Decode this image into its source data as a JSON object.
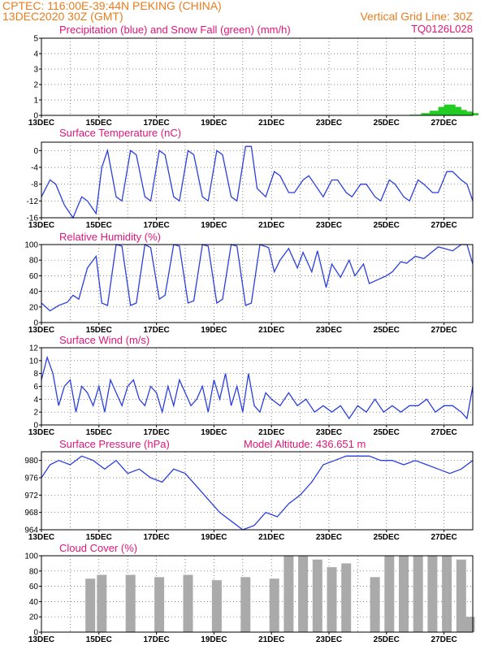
{
  "header": {
    "line1": "CPTEC:   116:00E-39:44N   PEKING (CHINA)",
    "line2": "13DEC2020 30Z (GMT)",
    "grid_note": "Vertical Grid Line: 30Z",
    "code": "TQ0126L028"
  },
  "colors": {
    "header": "#e87d1e",
    "title": "#e0157a",
    "line": "#2b3fe0",
    "snow": "#22cc22",
    "cloud": "#aaaaaa"
  },
  "chart_data": [
    {
      "type": "bar",
      "title": "Precipitation (blue) and Snow Fall (green) (mm/h)",
      "x_ticks": [
        "13DEC",
        "15DEC",
        "17DEC",
        "19DEC",
        "21DEC",
        "23DEC",
        "25DEC",
        "27DEC"
      ],
      "xlim": [
        13,
        28
      ],
      "ylim": [
        0,
        5
      ],
      "y_ticks": [
        0,
        1,
        2,
        3,
        4,
        5
      ],
      "series": [
        {
          "x": [
            25.0,
            25.5,
            26.0,
            26.4,
            26.7,
            27.0,
            27.2,
            27.4,
            27.6,
            27.8,
            28.0
          ],
          "values": [
            0.01,
            0.02,
            0.05,
            0.15,
            0.3,
            0.55,
            0.7,
            0.55,
            0.35,
            0.25,
            0.15
          ]
        }
      ]
    },
    {
      "type": "line",
      "title": "Surface Temperature (nC)",
      "x_ticks": [
        "13DEC",
        "15DEC",
        "17DEC",
        "19DEC",
        "21DEC",
        "23DEC",
        "25DEC",
        "27DEC"
      ],
      "xlim": [
        13,
        28
      ],
      "ylim": [
        -16,
        2
      ],
      "y_ticks": [
        -16,
        -12,
        -8,
        -4,
        0
      ],
      "series": [
        {
          "x": [
            13.0,
            13.3,
            13.5,
            13.8,
            14.1,
            14.4,
            14.6,
            14.9,
            15.1,
            15.3,
            15.6,
            15.8,
            16.1,
            16.3,
            16.6,
            16.8,
            17.1,
            17.3,
            17.6,
            17.8,
            18.1,
            18.3,
            18.6,
            18.8,
            19.1,
            19.3,
            19.6,
            19.8,
            20.1,
            20.3,
            20.5,
            20.8,
            21.1,
            21.3,
            21.6,
            21.8,
            22.1,
            22.3,
            22.6,
            22.8,
            23.1,
            23.3,
            23.6,
            23.8,
            24.1,
            24.3,
            24.6,
            24.8,
            25.1,
            25.3,
            25.6,
            25.8,
            26.1,
            26.3,
            26.6,
            26.8,
            27.1,
            27.3,
            27.6,
            27.8,
            28.0
          ],
          "values": [
            -11,
            -7,
            -8,
            -13,
            -16,
            -11,
            -12,
            -15,
            -4,
            0,
            -11,
            -12,
            0,
            -1,
            -11,
            -12,
            0,
            -1,
            -11,
            -12,
            0,
            -1,
            -11,
            -12,
            0,
            -1,
            -11,
            -12,
            1,
            1,
            -9,
            -11,
            -5,
            -6,
            -10,
            -10,
            -7,
            -6,
            -9,
            -11,
            -7,
            -7,
            -10,
            -11,
            -8,
            -8,
            -11,
            -12,
            -7,
            -8,
            -11,
            -12,
            -7,
            -8,
            -10,
            -10,
            -5,
            -5,
            -7,
            -8,
            -12
          ]
        }
      ]
    },
    {
      "type": "line",
      "title": "Relative Humidity (%)",
      "x_ticks": [
        "13DEC",
        "15DEC",
        "17DEC",
        "19DEC",
        "21DEC",
        "23DEC",
        "25DEC",
        "27DEC"
      ],
      "xlim": [
        13,
        28
      ],
      "ylim": [
        0,
        100
      ],
      "y_ticks": [
        0,
        20,
        40,
        60,
        80,
        100
      ],
      "series": [
        {
          "x": [
            13.0,
            13.3,
            13.6,
            13.9,
            14.1,
            14.3,
            14.6,
            14.9,
            15.1,
            15.3,
            15.6,
            15.8,
            16.1,
            16.3,
            16.6,
            16.8,
            17.1,
            17.3,
            17.6,
            17.8,
            18.1,
            18.3,
            18.6,
            18.8,
            19.1,
            19.3,
            19.6,
            19.8,
            20.1,
            20.3,
            20.6,
            20.9,
            21.1,
            21.3,
            21.6,
            21.9,
            22.1,
            22.4,
            22.6,
            22.9,
            23.1,
            23.4,
            23.7,
            23.9,
            24.2,
            24.4,
            24.7,
            25.0,
            25.2,
            25.5,
            25.7,
            26.0,
            26.3,
            26.5,
            26.8,
            27.0,
            27.3,
            27.6,
            27.8,
            28.0
          ],
          "values": [
            25,
            15,
            22,
            26,
            35,
            30,
            70,
            85,
            25,
            22,
            100,
            98,
            22,
            25,
            100,
            96,
            30,
            35,
            100,
            98,
            25,
            28,
            100,
            98,
            25,
            30,
            100,
            98,
            22,
            25,
            100,
            96,
            65,
            80,
            95,
            70,
            90,
            65,
            92,
            45,
            75,
            58,
            80,
            60,
            75,
            50,
            55,
            60,
            65,
            78,
            76,
            85,
            82,
            88,
            97,
            95,
            92,
            100,
            100,
            75
          ]
        }
      ]
    },
    {
      "type": "line",
      "title": "Surface Wind (m/s)",
      "x_ticks": [
        "13DEC",
        "15DEC",
        "17DEC",
        "19DEC",
        "21DEC",
        "23DEC",
        "25DEC",
        "27DEC"
      ],
      "xlim": [
        13,
        28
      ],
      "ylim": [
        0,
        12
      ],
      "y_ticks": [
        0,
        2,
        4,
        6,
        8,
        10,
        12
      ],
      "series": [
        {
          "x": [
            13.0,
            13.2,
            13.4,
            13.6,
            13.8,
            14.0,
            14.2,
            14.4,
            14.6,
            14.8,
            15.0,
            15.2,
            15.4,
            15.6,
            15.8,
            16.0,
            16.2,
            16.4,
            16.6,
            16.8,
            17.0,
            17.2,
            17.4,
            17.6,
            17.8,
            18.0,
            18.2,
            18.4,
            18.6,
            18.8,
            19.0,
            19.2,
            19.4,
            19.6,
            19.8,
            20.0,
            20.2,
            20.4,
            20.6,
            20.8,
            21.0,
            21.3,
            21.6,
            21.9,
            22.2,
            22.5,
            22.8,
            23.1,
            23.4,
            23.7,
            24.0,
            24.3,
            24.6,
            24.9,
            25.2,
            25.5,
            25.8,
            26.1,
            26.4,
            26.7,
            27.0,
            27.3,
            27.6,
            27.8,
            28.0
          ],
          "values": [
            7,
            10.5,
            8,
            3,
            6,
            7,
            2,
            6,
            5,
            3,
            6,
            2,
            7,
            5,
            3,
            6,
            7,
            4,
            3,
            6,
            5,
            2,
            6,
            3,
            7,
            5,
            3,
            4,
            6,
            2,
            7,
            4,
            8,
            3,
            6,
            2,
            8,
            3,
            2,
            5,
            4,
            3,
            5,
            3,
            4,
            2,
            3,
            2,
            3,
            1,
            3,
            2,
            4,
            2,
            3,
            2,
            3,
            3,
            4,
            2,
            3,
            3,
            2,
            1,
            6
          ]
        }
      ]
    },
    {
      "type": "line",
      "title": "Surface Pressure (hPa)",
      "annotation": "Model Altitude: 436.651 m",
      "x_ticks": [
        "13DEC",
        "15DEC",
        "17DEC",
        "19DEC",
        "21DEC",
        "23DEC",
        "25DEC",
        "27DEC"
      ],
      "xlim": [
        13,
        28
      ],
      "ylim": [
        964,
        982
      ],
      "y_ticks": [
        964,
        968,
        972,
        976,
        980
      ],
      "series": [
        {
          "x": [
            13.0,
            13.3,
            13.6,
            14.0,
            14.4,
            14.8,
            15.2,
            15.6,
            16.0,
            16.4,
            16.8,
            17.2,
            17.6,
            18.0,
            18.4,
            18.8,
            19.2,
            19.6,
            20.0,
            20.4,
            20.8,
            21.2,
            21.6,
            22.0,
            22.4,
            22.8,
            23.2,
            23.6,
            24.0,
            24.4,
            24.8,
            25.2,
            25.6,
            26.0,
            26.4,
            26.8,
            27.2,
            27.6,
            28.0
          ],
          "values": [
            976,
            979,
            980,
            979,
            981,
            980,
            978,
            980,
            977,
            978,
            976,
            975,
            978,
            977,
            974,
            971,
            968,
            966,
            964,
            965,
            968,
            967,
            970,
            972,
            975,
            979,
            980,
            981,
            981,
            981,
            980,
            980,
            979,
            980,
            979,
            978,
            977,
            978,
            980
          ]
        }
      ]
    },
    {
      "type": "bar",
      "title": "Cloud Cover (%)",
      "x_ticks": [
        "13DEC",
        "15DEC",
        "17DEC",
        "19DEC",
        "21DEC",
        "23DEC",
        "25DEC",
        "27DEC"
      ],
      "xlim": [
        13,
        28
      ],
      "ylim": [
        0,
        100
      ],
      "y_ticks": [
        0,
        20,
        40,
        60,
        80,
        100
      ],
      "series": [
        {
          "x": [
            14.7,
            15.1,
            15.6,
            16.1,
            16.6,
            17.1,
            17.6,
            18.1,
            18.6,
            19.1,
            19.6,
            20.1,
            20.6,
            21.1,
            21.6,
            22.1,
            22.6,
            23.1,
            23.6,
            24.1,
            24.6,
            25.1,
            25.6,
            26.1,
            26.6,
            27.1,
            27.6,
            27.9
          ],
          "values": [
            70,
            75,
            0,
            75,
            0,
            72,
            0,
            75,
            0,
            68,
            0,
            72,
            0,
            70,
            100,
            100,
            95,
            85,
            90,
            0,
            72,
            100,
            100,
            100,
            100,
            100,
            95,
            20
          ]
        }
      ]
    }
  ]
}
